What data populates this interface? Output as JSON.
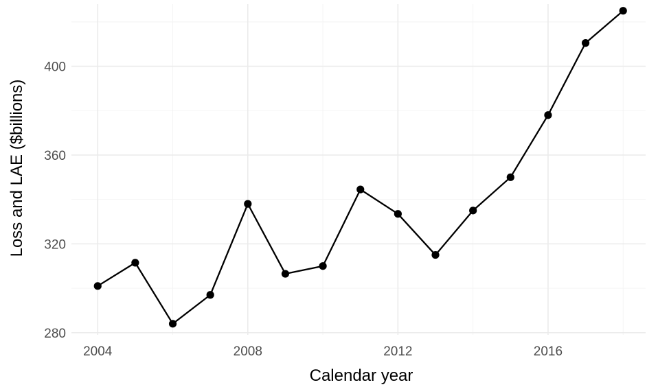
{
  "chart_data": {
    "type": "line",
    "title": "",
    "xlabel": "Calendar year",
    "ylabel": "Loss and LAE ($billions)",
    "x": [
      2004,
      2005,
      2006,
      2007,
      2008,
      2009,
      2010,
      2011,
      2012,
      2013,
      2014,
      2015,
      2016,
      2017,
      2018
    ],
    "series": [
      {
        "values": [
          301,
          311.5,
          284,
          297,
          338,
          306.5,
          310,
          344.5,
          333.5,
          315,
          335,
          350,
          378,
          410.5,
          425
        ]
      }
    ],
    "x_ticks": [
      "2004",
      "2008",
      "2012",
      "2016"
    ],
    "y_ticks": [
      "280",
      "320",
      "360",
      "400"
    ],
    "xlim": [
      2003.3,
      2018.6
    ],
    "ylim": [
      279,
      428
    ],
    "grid": true,
    "legend": "none",
    "colors": {
      "line": "#000000",
      "grid": "#ebebeb"
    }
  }
}
